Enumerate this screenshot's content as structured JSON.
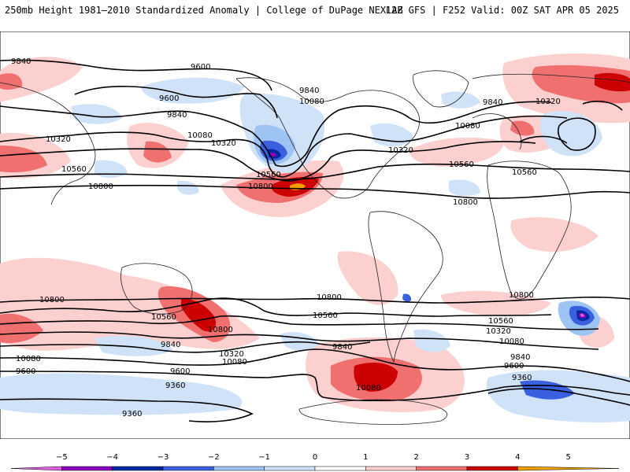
{
  "header": {
    "left": "250mb Height 1981–2010 Standardized Anomaly | College of DuPage NEXLAB",
    "right": "12Z GFS | F252 Valid: 00Z SAT APR 05 2025"
  },
  "contour_labels": [
    {
      "text": "9840"
    },
    {
      "text": "9600"
    },
    {
      "text": "9600"
    },
    {
      "text": "9840"
    },
    {
      "text": "10080"
    },
    {
      "text": "10320"
    },
    {
      "text": "10320"
    },
    {
      "text": "10560"
    },
    {
      "text": "10560"
    },
    {
      "text": "10800"
    },
    {
      "text": "10800"
    },
    {
      "text": "9840"
    },
    {
      "text": "10080"
    },
    {
      "text": "10320"
    },
    {
      "text": "10080"
    },
    {
      "text": "9840"
    },
    {
      "text": "10320"
    },
    {
      "text": "10560"
    },
    {
      "text": "10560"
    },
    {
      "text": "10800"
    },
    {
      "text": "10800"
    },
    {
      "text": "10800"
    },
    {
      "text": "10560"
    },
    {
      "text": "10560"
    },
    {
      "text": "10800"
    },
    {
      "text": "10800"
    },
    {
      "text": "9840"
    },
    {
      "text": "10320"
    },
    {
      "text": "10080"
    },
    {
      "text": "9840"
    },
    {
      "text": "10560"
    },
    {
      "text": "10320"
    },
    {
      "text": "10080"
    },
    {
      "text": "9840"
    },
    {
      "text": "9600"
    },
    {
      "text": "9360"
    },
    {
      "text": "10080"
    },
    {
      "text": "9600"
    },
    {
      "text": "9600"
    },
    {
      "text": "9360"
    },
    {
      "text": "9360"
    },
    {
      "text": "10080"
    }
  ],
  "legend": {
    "ticks": [
      "−5",
      "−4",
      "−3",
      "−2",
      "−1",
      "0",
      "1",
      "2",
      "3",
      "4",
      "5"
    ],
    "colors": [
      "#e060e0",
      "#8a00c0",
      "#0028a0",
      "#3a60e0",
      "#9ec4f4",
      "#cfe2f8",
      "#ffffff",
      "#fdd0d0",
      "#f07070",
      "#cc0000",
      "#f0a000"
    ]
  }
}
